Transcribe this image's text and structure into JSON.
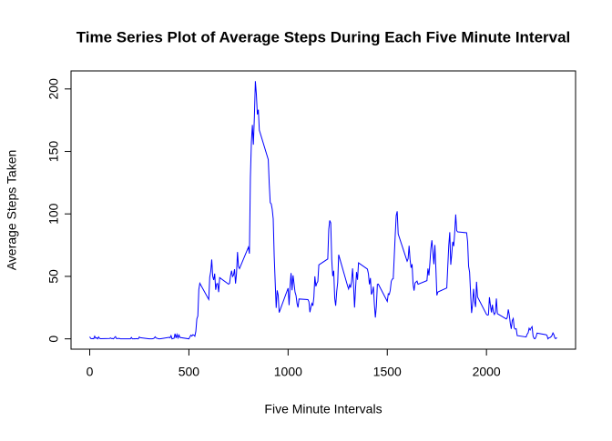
{
  "chart_data": {
    "type": "line",
    "title": "Time Series Plot of Average Steps During Each Five Minute Interval",
    "x_label": "Five Minute Intervals",
    "y_label": "Average Steps Taken",
    "color": "#0000ff",
    "xlim": [
      -94.2,
      2449.2
    ],
    "xticks": [
      0,
      500,
      1000,
      1500,
      2000
    ],
    "ylim": [
      -8.25,
      214.42
    ],
    "yticks": [
      0,
      50,
      100,
      150,
      200
    ],
    "x": [
      0,
      5,
      10,
      15,
      20,
      25,
      30,
      35,
      40,
      45,
      50,
      55,
      100,
      105,
      110,
      115,
      120,
      125,
      130,
      135,
      140,
      145,
      150,
      155,
      200,
      205,
      210,
      215,
      220,
      225,
      230,
      235,
      240,
      245,
      250,
      255,
      300,
      305,
      310,
      315,
      320,
      325,
      330,
      335,
      340,
      345,
      350,
      355,
      400,
      405,
      410,
      415,
      420,
      425,
      430,
      435,
      440,
      445,
      450,
      455,
      500,
      505,
      510,
      515,
      520,
      525,
      530,
      535,
      540,
      545,
      550,
      555,
      600,
      605,
      610,
      615,
      620,
      625,
      630,
      635,
      640,
      645,
      650,
      655,
      700,
      705,
      710,
      715,
      720,
      725,
      730,
      735,
      740,
      745,
      750,
      755,
      800,
      805,
      810,
      815,
      820,
      825,
      830,
      835,
      840,
      845,
      850,
      855,
      900,
      905,
      910,
      915,
      920,
      925,
      930,
      935,
      940,
      945,
      950,
      955,
      1000,
      1005,
      1010,
      1015,
      1020,
      1025,
      1030,
      1035,
      1040,
      1045,
      1050,
      1055,
      1100,
      1105,
      1110,
      1115,
      1120,
      1125,
      1130,
      1135,
      1140,
      1145,
      1150,
      1155,
      1200,
      1205,
      1210,
      1215,
      1220,
      1225,
      1230,
      1235,
      1240,
      1245,
      1250,
      1255,
      1300,
      1305,
      1310,
      1315,
      1320,
      1325,
      1330,
      1335,
      1340,
      1345,
      1350,
      1355,
      1400,
      1405,
      1410,
      1415,
      1420,
      1425,
      1430,
      1435,
      1440,
      1445,
      1450,
      1455,
      1500,
      1505,
      1510,
      1515,
      1520,
      1525,
      1530,
      1535,
      1540,
      1545,
      1550,
      1555,
      1600,
      1605,
      1610,
      1615,
      1620,
      1625,
      1630,
      1635,
      1640,
      1645,
      1650,
      1655,
      1700,
      1705,
      1710,
      1715,
      1720,
      1725,
      1730,
      1735,
      1740,
      1745,
      1750,
      1755,
      1800,
      1805,
      1810,
      1815,
      1820,
      1825,
      1830,
      1835,
      1840,
      1845,
      1850,
      1855,
      1900,
      1905,
      1910,
      1915,
      1920,
      1925,
      1930,
      1935,
      1940,
      1945,
      1950,
      1955,
      2000,
      2005,
      2010,
      2015,
      2020,
      2025,
      2030,
      2035,
      2040,
      2045,
      2050,
      2055,
      2100,
      2105,
      2110,
      2115,
      2120,
      2125,
      2130,
      2135,
      2140,
      2145,
      2150,
      2155,
      2200,
      2205,
      2210,
      2215,
      2220,
      2225,
      2230,
      2235,
      2240,
      2245,
      2250,
      2255,
      2300,
      2305,
      2310,
      2315,
      2320,
      2325,
      2330,
      2335,
      2340,
      2345,
      2350,
      2355
    ],
    "values": [
      1.7,
      0.3,
      0.1,
      0.2,
      0.1,
      2.1,
      0.5,
      0.9,
      0,
      1.5,
      0.3,
      0.1,
      0.3,
      0.7,
      0.2,
      0.3,
      0,
      1.1,
      1.8,
      0.2,
      0.2,
      0.4,
      0.3,
      0,
      0,
      0,
      1.1,
      0,
      0,
      0.1,
      0,
      0.2,
      0,
      0,
      1.5,
      0.9,
      0,
      0,
      0,
      0,
      0.2,
      0.6,
      1.6,
      0.6,
      0.5,
      0.1,
      0,
      0,
      1.2,
      0.9,
      2.6,
      0,
      0.3,
      0.4,
      4.1,
      0.7,
      3.5,
      0.8,
      3.1,
      1.1,
      0,
      1.6,
      3,
      2.2,
      3.3,
      3,
      2.1,
      6.1,
      16,
      18.3,
      39.5,
      44.5,
      31.5,
      49.3,
      53.8,
      63.5,
      50,
      47.1,
      52.2,
      39.3,
      44,
      44.2,
      37.4,
      49,
      43.8,
      44.4,
      50.5,
      54.5,
      49.9,
      51,
      55.7,
      44.3,
      52.3,
      69.5,
      57.8,
      56.2,
      73.4,
      68.2,
      129.4,
      157.5,
      171.2,
      155.4,
      177.3,
      206.2,
      195.9,
      179.6,
      183.4,
      167,
      143.5,
      124,
      109,
      108,
      103.7,
      96,
      66.2,
      45.2,
      24.8,
      38.8,
      35,
      21.1,
      40.6,
      27,
      42.4,
      52.7,
      38.9,
      50.8,
      44.3,
      37.4,
      34.7,
      28.3,
      25.1,
      31.9,
      31.4,
      29.7,
      21.3,
      25.5,
      28.4,
      26.5,
      33.4,
      50,
      42,
      44.6,
      46,
      59.2,
      63.9,
      87.7,
      94.8,
      92.8,
      63.4,
      50.2,
      54.5,
      32.4,
      26.5,
      37.7,
      45.1,
      67.3,
      42.3,
      39.9,
      43.3,
      41,
      46.2,
      56.4,
      42.8,
      25.1,
      40,
      53.5,
      47.3,
      60.8,
      55.8,
      52,
      43.6,
      48.7,
      35.5,
      37.5,
      41.8,
      27.5,
      17.1,
      26.1,
      43.6,
      43.8,
      30,
      36.1,
      35.5,
      38.8,
      46,
      47.8,
      48.1,
      65.3,
      82.9,
      98.7,
      102.1,
      84,
      62.1,
      64.1,
      74.5,
      63.2,
      56.9,
      59.8,
      43.9,
      38.6,
      44.7,
      45.5,
      46.2,
      43.7,
      46.6,
      56.3,
      50.7,
      61.2,
      72.7,
      78.9,
      68.9,
      59.7,
      75.1,
      56.5,
      34.8,
      37.5,
      40.7,
      58,
      74.7,
      85.3,
      59.3,
      67.8,
      77.7,
      74.2,
      85.3,
      99.5,
      86.6,
      85.6,
      84.9,
      77.8,
      58,
      53.4,
      36.3,
      20.7,
      27.4,
      40,
      30.2,
      25.5,
      45.7,
      33.5,
      19.6,
      19,
      19.3,
      33.3,
      26.8,
      21.2,
      27.3,
      21.3,
      19.5,
      21.3,
      32.3,
      20.2,
      15.9,
      17.2,
      23.5,
      19.2,
      12.5,
      8,
      14.7,
      16.3,
      8.7,
      7.8,
      8.1,
      2.6,
      1.5,
      3.7,
      4.8,
      8.5,
      7.1,
      8.7,
      9.8,
      2.2,
      0.3,
      0.1,
      1.6,
      4.6,
      3.3,
      2.8,
      0,
      0.8,
      1,
      1.6,
      2.6,
      4.7,
      3.3,
      0.6,
      0.2,
      1.1
    ]
  }
}
